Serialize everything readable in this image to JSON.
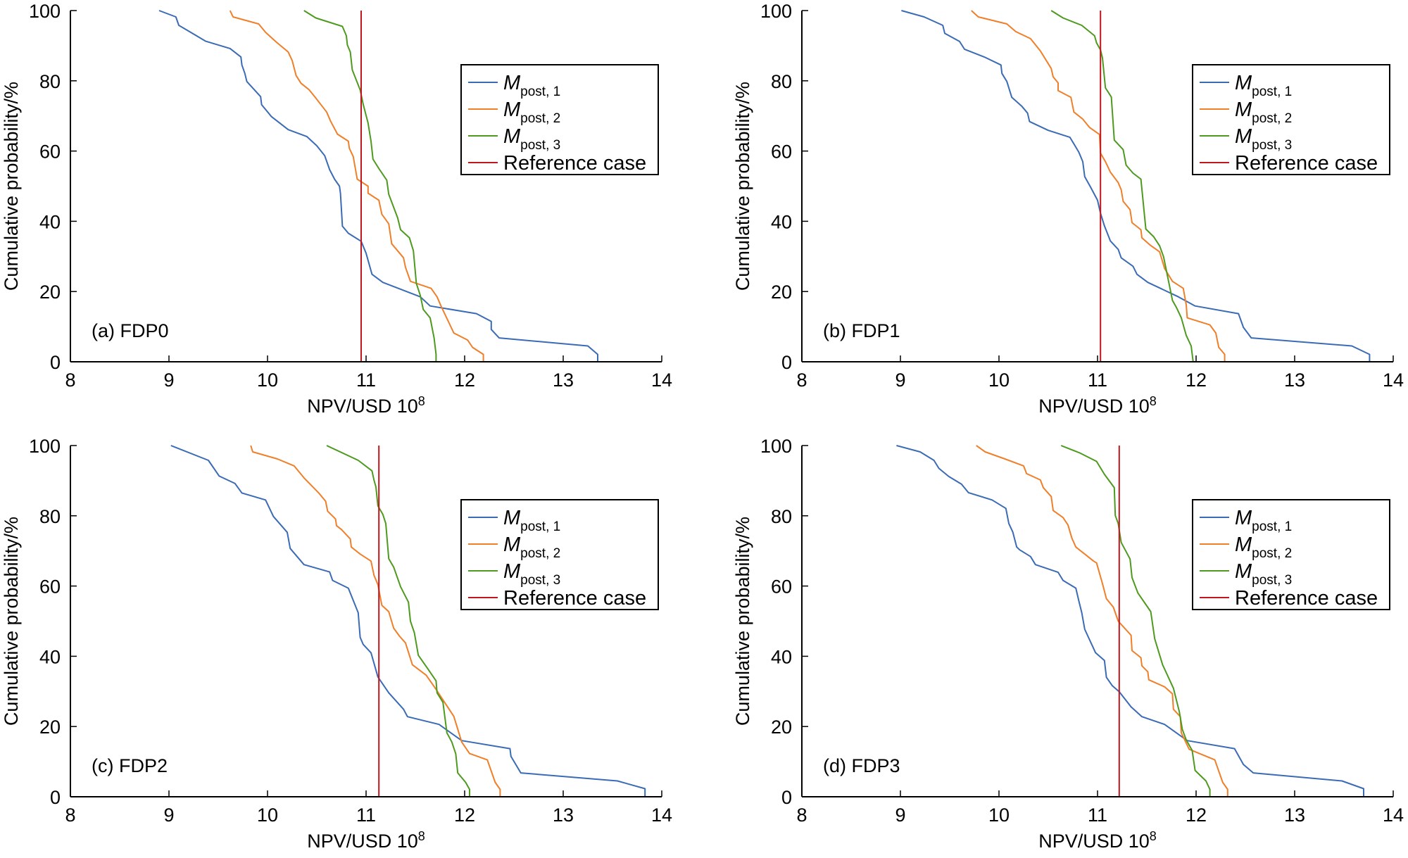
{
  "figure": {
    "legend_entries": [
      {
        "symbol": "M",
        "subscript": "post, 1",
        "color": "#3B6BB5"
      },
      {
        "symbol": "M",
        "subscript": "post, 2",
        "color": "#F07F2A"
      },
      {
        "symbol": "M",
        "subscript": "post, 3",
        "color": "#4E9A1E"
      },
      {
        "label": "Reference case",
        "color": "#C0161E"
      }
    ]
  },
  "chart_data": [
    {
      "type": "line",
      "panel_label": "(a) FDP0",
      "xlabel": "NPV/USD 10",
      "xlabel_superscript": "8",
      "ylabel": "Cumulative probability/%",
      "xlim": [
        8,
        14
      ],
      "ylim": [
        0,
        100
      ],
      "xticks": [
        8,
        9,
        10,
        11,
        12,
        13,
        14
      ],
      "yticks": [
        0,
        20,
        40,
        60,
        80,
        100
      ],
      "grid": false,
      "legend_position": "top-right",
      "reference_case": 10.95,
      "series": [
        {
          "name": "M_post,1",
          "x": [
            8.9,
            9.07,
            9.1,
            9.22,
            9.37,
            9.62,
            9.73,
            9.74,
            9.77,
            9.79,
            9.93,
            9.94,
            10.04,
            10.21,
            10.4,
            10.5,
            10.58,
            10.63,
            10.68,
            10.73,
            10.74,
            10.76,
            10.82,
            10.95,
            11.0,
            11.06,
            11.17,
            11.55,
            11.65,
            12.12,
            12.27,
            12.27,
            12.35,
            13.25,
            13.35,
            13.35
          ],
          "y": [
            100,
            98.2,
            95.8,
            93.8,
            91.3,
            89.2,
            86.8,
            84.5,
            82.1,
            79.8,
            75.5,
            73.2,
            69.8,
            66.1,
            64.1,
            61.5,
            58.7,
            54.7,
            52.0,
            50.0,
            48.0,
            38.6,
            36.6,
            34.3,
            30.9,
            24.9,
            22.6,
            18.5,
            15.9,
            13.7,
            11.5,
            9.2,
            6.8,
            4.5,
            2.1,
            0
          ]
        },
        {
          "name": "M_post,2",
          "x": [
            9.62,
            9.65,
            9.91,
            9.98,
            10.09,
            10.21,
            10.25,
            10.29,
            10.34,
            10.42,
            10.49,
            10.6,
            10.64,
            10.71,
            10.82,
            10.83,
            10.87,
            10.91,
            11.02,
            11.02,
            11.13,
            11.16,
            11.23,
            11.26,
            11.38,
            11.4,
            11.45,
            11.66,
            11.72,
            11.76,
            11.89,
            12.03,
            12.08,
            12.19,
            12.19
          ],
          "y": [
            100,
            98.2,
            96.2,
            93.8,
            91.0,
            88.2,
            85.8,
            81.5,
            79.3,
            77.5,
            75.1,
            71.1,
            68.5,
            64.8,
            62.8,
            60.8,
            58.4,
            52.0,
            50.0,
            48.0,
            46.0,
            42.0,
            39.3,
            33.6,
            29.6,
            26.9,
            22.9,
            20.9,
            18.5,
            15.9,
            8.2,
            6.2,
            4.1,
            2.1,
            0
          ]
        },
        {
          "name": "M_post,3",
          "x": [
            10.37,
            10.49,
            10.76,
            10.8,
            10.81,
            10.84,
            10.86,
            10.94,
            10.97,
            11.02,
            11.05,
            11.07,
            11.13,
            11.21,
            11.23,
            11.32,
            11.35,
            11.44,
            11.48,
            11.51,
            11.55,
            11.58,
            11.65,
            11.69,
            11.71,
            11.71
          ],
          "y": [
            100,
            97.9,
            95.5,
            92.8,
            90.2,
            88.2,
            83.1,
            77.4,
            73.4,
            68.0,
            62.8,
            57.7,
            55.0,
            51.7,
            47.7,
            41.0,
            37.6,
            35.3,
            31.6,
            22.3,
            18.9,
            14.9,
            12.5,
            6.8,
            2.1,
            0
          ]
        }
      ]
    },
    {
      "type": "line",
      "panel_label": "(b) FDP1",
      "xlabel": "NPV/USD 10",
      "xlabel_superscript": "8",
      "ylabel": "Cumulative probability/%",
      "xlim": [
        8,
        14
      ],
      "ylim": [
        0,
        100
      ],
      "xticks": [
        8,
        9,
        10,
        11,
        12,
        13,
        14
      ],
      "yticks": [
        0,
        20,
        40,
        60,
        80,
        100
      ],
      "grid": false,
      "legend_position": "top-right",
      "reference_case": 11.03,
      "series": [
        {
          "name": "M_post,1",
          "x": [
            9.01,
            9.24,
            9.43,
            9.45,
            9.6,
            9.65,
            9.85,
            10.02,
            10.03,
            10.08,
            10.13,
            10.23,
            10.29,
            10.31,
            10.5,
            10.72,
            10.81,
            10.85,
            10.87,
            10.93,
            11.0,
            11.03,
            11.07,
            11.13,
            11.21,
            11.24,
            11.36,
            11.4,
            11.51,
            11.82,
            11.99,
            12.43,
            12.48,
            12.56,
            13.58,
            13.76,
            13.76
          ],
          "y": [
            100,
            98.2,
            95.8,
            93.5,
            91.2,
            89.0,
            86.8,
            84.5,
            82.1,
            79.8,
            75.3,
            72.8,
            70.8,
            68.4,
            65.9,
            63.9,
            59.7,
            57.0,
            52.7,
            49.7,
            46.0,
            42.3,
            38.7,
            34.4,
            32.0,
            29.6,
            27.2,
            24.9,
            22.6,
            18.5,
            15.9,
            13.7,
            9.8,
            6.8,
            4.5,
            2.1,
            0
          ]
        },
        {
          "name": "M_post,2",
          "x": [
            9.72,
            9.79,
            10.08,
            10.17,
            10.32,
            10.42,
            10.53,
            10.55,
            10.6,
            10.6,
            10.73,
            10.76,
            10.85,
            10.92,
            11.02,
            11.03,
            11.08,
            11.13,
            11.21,
            11.24,
            11.26,
            11.33,
            11.35,
            11.44,
            11.45,
            11.53,
            11.63,
            11.68,
            11.76,
            11.87,
            11.9,
            11.91,
            12.14,
            12.2,
            12.23,
            12.29,
            12.29
          ],
          "y": [
            100,
            98.2,
            96.2,
            94.0,
            92.0,
            88.5,
            83.5,
            81.1,
            79.4,
            77.2,
            75.3,
            71.1,
            69.1,
            66.7,
            64.7,
            59.4,
            57.0,
            54.0,
            51.0,
            49.0,
            45.7,
            43.3,
            39.6,
            37.6,
            35.3,
            33.3,
            31.3,
            26.6,
            22.9,
            20.9,
            16.2,
            12.5,
            10.5,
            8.2,
            4.1,
            2.1,
            0
          ]
        },
        {
          "name": "M_post,3",
          "x": [
            10.53,
            10.65,
            10.84,
            10.97,
            10.99,
            11.03,
            11.05,
            11.08,
            11.14,
            11.17,
            11.26,
            11.29,
            11.36,
            11.44,
            11.49,
            11.57,
            11.63,
            11.67,
            11.76,
            11.8,
            11.85,
            11.9,
            11.95,
            11.97
          ],
          "y": [
            100,
            97.9,
            95.8,
            92.8,
            90.8,
            88.8,
            86.5,
            78.0,
            75.4,
            63.1,
            60.4,
            56.0,
            53.7,
            52.0,
            37.8,
            35.6,
            33.0,
            29.9,
            17.5,
            15.5,
            12.5,
            7.5,
            4.5,
            0
          ]
        }
      ]
    },
    {
      "type": "line",
      "panel_label": "(c) FDP2",
      "xlabel": "NPV/USD 10",
      "xlabel_superscript": "8",
      "ylabel": "Cumulative probability/%",
      "xlim": [
        8,
        14
      ],
      "ylim": [
        0,
        100
      ],
      "xticks": [
        8,
        9,
        10,
        11,
        12,
        13,
        14
      ],
      "yticks": [
        0,
        20,
        40,
        60,
        80,
        100
      ],
      "grid": false,
      "legend_position": "top-right",
      "reference_case": 11.13,
      "series": [
        {
          "name": "M_post,1",
          "x": [
            9.02,
            9.4,
            9.51,
            9.67,
            9.74,
            9.98,
            10.06,
            10.2,
            10.23,
            10.37,
            10.63,
            10.66,
            10.82,
            10.92,
            10.94,
            10.97,
            11.05,
            11.12,
            11.23,
            11.38,
            11.42,
            11.74,
            11.97,
            12.46,
            12.47,
            12.57,
            13.55,
            13.83,
            13.83
          ],
          "y": [
            100,
            95.8,
            91.3,
            89.2,
            86.5,
            84.5,
            79.8,
            75.3,
            70.7,
            66.1,
            64.0,
            61.6,
            59.4,
            52.4,
            45.4,
            43.4,
            41.0,
            34.1,
            29.6,
            24.9,
            22.8,
            20.6,
            16.0,
            13.7,
            11.5,
            6.8,
            4.5,
            2.3,
            0
          ]
        },
        {
          "name": "M_post,2",
          "x": [
            9.83,
            9.85,
            10.1,
            10.27,
            10.37,
            10.52,
            10.59,
            10.61,
            10.69,
            10.7,
            10.75,
            10.84,
            10.85,
            10.94,
            11.05,
            11.08,
            11.12,
            11.16,
            11.23,
            11.28,
            11.34,
            11.4,
            11.47,
            11.61,
            11.7,
            11.85,
            11.89,
            11.97,
            12.05,
            12.23,
            12.31,
            12.36,
            12.36
          ],
          "y": [
            100,
            98.2,
            96.2,
            94.2,
            90.8,
            86.5,
            84.1,
            81.3,
            79.1,
            77.2,
            76.1,
            73.4,
            71.1,
            69.1,
            67.1,
            63.1,
            60.4,
            54.5,
            52.7,
            48.0,
            45.7,
            43.8,
            37.6,
            34.6,
            31.0,
            24.6,
            22.9,
            15.6,
            12.3,
            10.5,
            4.1,
            2.1,
            0
          ]
        },
        {
          "name": "M_post,3",
          "x": [
            10.6,
            10.92,
            11.06,
            11.08,
            11.1,
            11.12,
            11.17,
            11.2,
            11.23,
            11.28,
            11.35,
            11.43,
            11.45,
            11.49,
            11.53,
            11.63,
            11.71,
            11.72,
            11.78,
            11.82,
            11.87,
            11.91,
            11.93,
            12.01,
            12.05,
            12.05
          ],
          "y": [
            100,
            95.8,
            92.8,
            90.2,
            88.2,
            82.8,
            80.4,
            77.8,
            67.8,
            65.4,
            59.8,
            55.4,
            50.0,
            46.7,
            40.3,
            36.3,
            33.0,
            29.6,
            26.9,
            18.2,
            15.6,
            12.2,
            6.8,
            4.1,
            2.1,
            0
          ]
        }
      ]
    },
    {
      "type": "line",
      "panel_label": "(d) FDP3",
      "xlabel": "NPV/USD 10",
      "xlabel_superscript": "8",
      "ylabel": "Cumulative probability/%",
      "xlim": [
        8,
        14
      ],
      "ylim": [
        0,
        100
      ],
      "xticks": [
        8,
        9,
        10,
        11,
        12,
        13,
        14
      ],
      "yticks": [
        0,
        20,
        40,
        60,
        80,
        100
      ],
      "grid": false,
      "legend_position": "top-right",
      "reference_case": 11.22,
      "series": [
        {
          "name": "M_post,1",
          "x": [
            8.96,
            9.2,
            9.34,
            9.39,
            9.49,
            9.62,
            9.69,
            9.93,
            10.07,
            10.1,
            10.14,
            10.18,
            10.21,
            10.32,
            10.37,
            10.6,
            10.65,
            10.78,
            10.81,
            10.84,
            10.87,
            10.98,
            11.07,
            11.09,
            11.15,
            11.22,
            11.34,
            11.45,
            11.68,
            11.91,
            12.39,
            12.48,
            12.58,
            13.48,
            13.7,
            13.7
          ],
          "y": [
            100,
            98.2,
            95.8,
            93.5,
            91.2,
            89.0,
            86.6,
            84.5,
            82.1,
            77.8,
            75.4,
            71.1,
            70.3,
            68.4,
            66.1,
            63.9,
            61.6,
            59.4,
            55.8,
            52.4,
            47.7,
            41.0,
            38.8,
            34.0,
            31.6,
            29.9,
            25.6,
            22.8,
            20.6,
            16.0,
            13.7,
            9.2,
            6.8,
            4.5,
            2.3,
            0
          ]
        },
        {
          "name": "M_post,2",
          "x": [
            9.77,
            9.86,
            10.06,
            10.25,
            10.28,
            10.42,
            10.45,
            10.53,
            10.55,
            10.65,
            10.7,
            10.74,
            10.78,
            10.96,
            10.99,
            11.05,
            11.09,
            11.16,
            11.21,
            11.34,
            11.35,
            11.44,
            11.45,
            11.51,
            11.52,
            11.68,
            11.76,
            11.77,
            11.84,
            11.85,
            11.93,
            12.19,
            12.27,
            12.32,
            12.32
          ],
          "y": [
            100,
            98.2,
            96.2,
            94.2,
            92.0,
            90.2,
            88.0,
            85.5,
            81.5,
            79.5,
            77.4,
            73.6,
            71.1,
            67.1,
            66.6,
            60.7,
            56.4,
            54.0,
            50.0,
            46.0,
            41.6,
            39.6,
            37.3,
            35.6,
            33.3,
            31.3,
            29.3,
            24.9,
            22.8,
            18.2,
            13.5,
            10.5,
            4.1,
            2.1,
            0
          ]
        },
        {
          "name": "M_post,3",
          "x": [
            10.63,
            10.82,
            10.99,
            11.07,
            11.17,
            11.18,
            11.21,
            11.24,
            11.33,
            11.35,
            11.41,
            11.54,
            11.58,
            11.66,
            11.77,
            11.83,
            11.86,
            11.9,
            11.96,
            11.99,
            12.1,
            12.14,
            12.14
          ],
          "y": [
            100,
            97.9,
            95.5,
            91.8,
            88.0,
            80.1,
            77.8,
            72.4,
            67.7,
            62.4,
            58.0,
            52.7,
            45.0,
            37.6,
            30.9,
            24.2,
            19.2,
            16.2,
            13.2,
            7.5,
            4.5,
            2.1,
            0
          ]
        }
      ]
    }
  ]
}
